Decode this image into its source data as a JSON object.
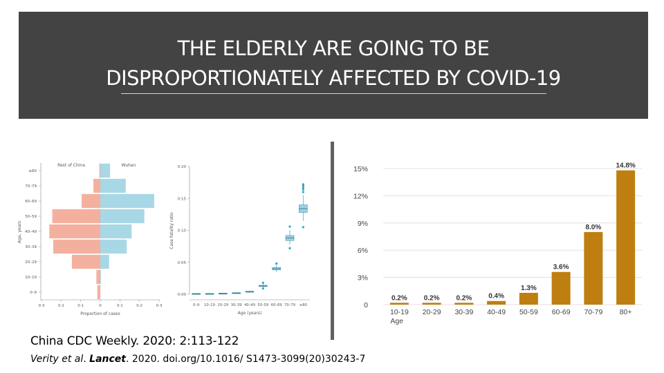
{
  "slide": {
    "title_line_1": "THE ELDERLY ARE GOING TO BE",
    "title_line_2": "DISPROPORTIONATELY AFFECTED BY COVID-19",
    "banner_color": "#434343",
    "citation_1": "China CDC Weekly.  2020:  2:113-122",
    "citation_2_author": "Verity et al",
    "citation_2_sep": ".  ",
    "citation_2_journal": "Lancet",
    "citation_2_rest": ".  2020. doi.org/10.1016/ S1473-3099(20)30243-7"
  },
  "chart_data": [
    {
      "type": "bar",
      "orientation": "horizontal",
      "subtype": "population-pyramid",
      "left_label": "Rest of China",
      "right_label": "Wuhan",
      "categories": [
        "0–9",
        "10–19",
        "20–29",
        "30–39",
        "40–49",
        "50–59",
        "60–69",
        "70–79",
        "≥80"
      ],
      "xlabel": "Proportion of cases",
      "ylabel": "Age, years",
      "x_ticks": [
        "0·3",
        "0·2",
        "0·1",
        "0",
        "0·1",
        "0·2",
        "0·3"
      ],
      "xlim": [
        -0.3,
        0.3
      ],
      "series": [
        {
          "name": "Rest of China",
          "color": "#f4b09e",
          "values": [
            0.015,
            0.02,
            0.145,
            0.24,
            0.26,
            0.245,
            0.095,
            0.035,
            0.005
          ]
        },
        {
          "name": "Wuhan",
          "color": "#a8d8e6",
          "values": [
            0.0,
            0.003,
            0.045,
            0.135,
            0.16,
            0.225,
            0.275,
            0.13,
            0.05
          ]
        }
      ]
    },
    {
      "type": "box",
      "categories": [
        "0–9",
        "10–19",
        "20–29",
        "30–39",
        "40–49",
        "50–59",
        "60–69",
        "70–79",
        "≥80"
      ],
      "xlabel": "Age (years)",
      "ylabel": "Case fatality ratio",
      "y_ticks": [
        "0·00",
        "0·05",
        "0·10",
        "0·15",
        "0·20"
      ],
      "ylim": [
        0,
        0.2
      ],
      "box_color": "#9fd0e2",
      "outlier_color": "#2aa7c4",
      "boxes": [
        {
          "q1": 0.0003,
          "median": 0.0005,
          "q3": 0.0007,
          "min": 0.0,
          "max": 0.001,
          "outliers": []
        },
        {
          "q1": 0.0003,
          "median": 0.0005,
          "q3": 0.0007,
          "min": 0.0,
          "max": 0.001,
          "outliers": []
        },
        {
          "q1": 0.0008,
          "median": 0.001,
          "q3": 0.0012,
          "min": 0.0005,
          "max": 0.0015,
          "outliers": []
        },
        {
          "q1": 0.0016,
          "median": 0.0018,
          "q3": 0.002,
          "min": 0.0012,
          "max": 0.0025,
          "outliers": []
        },
        {
          "q1": 0.0035,
          "median": 0.004,
          "q3": 0.0045,
          "min": 0.003,
          "max": 0.0055,
          "outliers": []
        },
        {
          "q1": 0.012,
          "median": 0.013,
          "q3": 0.014,
          "min": 0.01,
          "max": 0.016,
          "outliers": [
            0.009,
            0.018
          ]
        },
        {
          "q1": 0.038,
          "median": 0.04,
          "q3": 0.042,
          "min": 0.035,
          "max": 0.045,
          "outliers": [
            0.048
          ]
        },
        {
          "q1": 0.084,
          "median": 0.088,
          "q3": 0.092,
          "min": 0.078,
          "max": 0.1,
          "outliers": [
            0.072,
            0.106
          ]
        },
        {
          "q1": 0.128,
          "median": 0.134,
          "q3": 0.14,
          "min": 0.115,
          "max": 0.155,
          "outliers": [
            0.105,
            0.16,
            0.164,
            0.167,
            0.17,
            0.172
          ]
        }
      ]
    },
    {
      "type": "bar",
      "categories": [
        "10-19",
        "20-29",
        "30-39",
        "40-49",
        "50-59",
        "60-69",
        "70-79",
        "80+"
      ],
      "values": [
        0.2,
        0.2,
        0.2,
        0.4,
        1.3,
        3.6,
        8.0,
        14.8
      ],
      "data_labels": [
        "0.2%",
        "0.2%",
        "0.2%",
        "0.4%",
        "1.3%",
        "3.6%",
        "8.0%",
        "14.8%"
      ],
      "xlabel": "Age",
      "y_ticks": [
        "0",
        "3%",
        "6%",
        "9%",
        "12%",
        "15%"
      ],
      "ylim": [
        0,
        15
      ],
      "bar_color": "#be7f10",
      "grid": true
    }
  ]
}
